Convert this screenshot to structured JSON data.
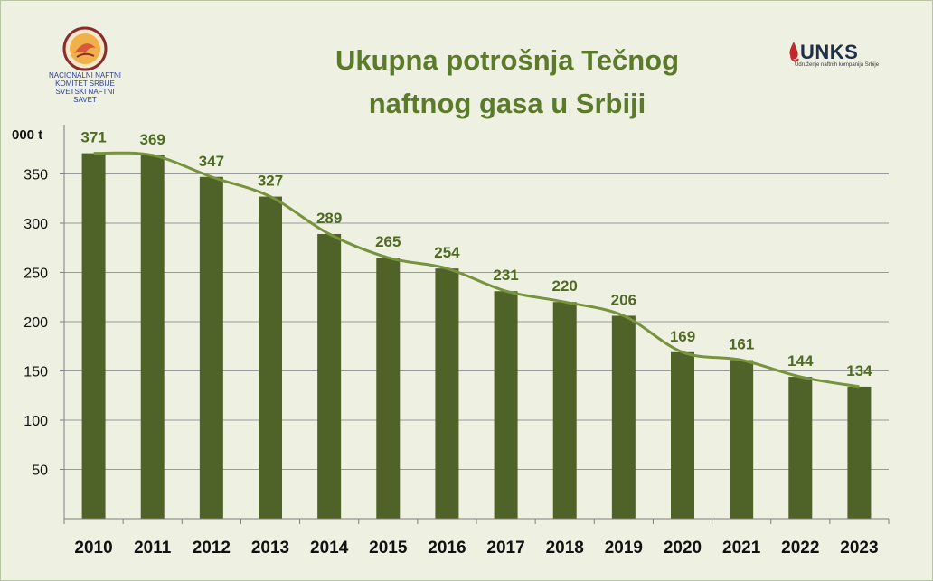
{
  "header": {
    "title_line1": "Ukupna potrošnja Tečnog",
    "title_line2": "naftnog gasa u Srbiji"
  },
  "logos": {
    "left": {
      "icon": "flame-logo-icon",
      "line1": "NACIONALNI NAFTNI",
      "line2": "KOMITET SRBIJE",
      "line3": "SVETSKI NAFTNI SAVET"
    },
    "right": {
      "icon": "drop-logo-icon",
      "wordmark": "UNKS",
      "tagline": "Udruženje naftnih kompanija Srbije"
    }
  },
  "colors": {
    "background": "#eef0e2",
    "bar": "#4f6228",
    "line": "#77933c",
    "label": "#4f6b23",
    "title": "#5b7a2a"
  },
  "chart_data": {
    "type": "bar",
    "title": "Ukupna potrošnja Tečnog naftnog gasa u Srbiji",
    "ylabel": "000 t",
    "xlabel": "",
    "categories": [
      "2010",
      "2011",
      "2012",
      "2013",
      "2014",
      "2015",
      "2016",
      "2017",
      "2018",
      "2019",
      "2020",
      "2021",
      "2022",
      "2023"
    ],
    "series": [
      {
        "values": [
          371,
          369,
          347,
          327,
          289,
          265,
          254,
          231,
          220,
          206,
          169,
          161,
          144,
          134
        ]
      }
    ],
    "trend_line": true,
    "ylim": [
      0,
      400
    ],
    "yticks": [
      50,
      100,
      150,
      200,
      250,
      300,
      350
    ],
    "grid": true,
    "legend": "none"
  }
}
